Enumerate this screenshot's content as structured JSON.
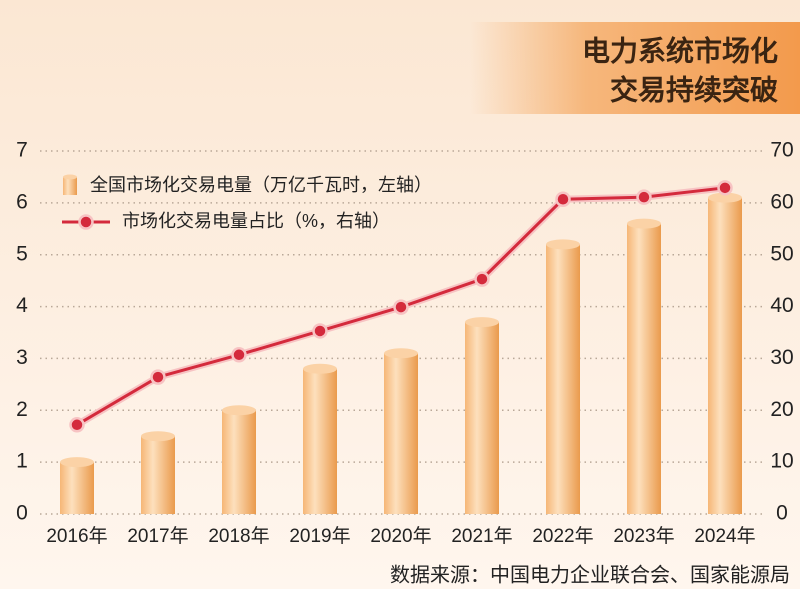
{
  "chart_data": {
    "type": "bar",
    "title": [
      "电力系统市场化",
      "交易持续突破"
    ],
    "categories": [
      "2016年",
      "2017年",
      "2018年",
      "2019年",
      "2020年",
      "2021年",
      "2022年",
      "2023年",
      "2024年"
    ],
    "series": [
      {
        "name": "全国市场化交易电量（万亿千瓦时，左轴）",
        "type": "bar",
        "color": "#f0a050",
        "values": [
          1.0,
          1.5,
          2.0,
          2.8,
          3.1,
          3.7,
          5.2,
          5.6,
          6.1
        ]
      },
      {
        "name": "市场化交易电量占比（%，右轴）",
        "type": "line",
        "axis": "y2",
        "color": "#d42a3c",
        "values": [
          17.2,
          26.4,
          30.7,
          35.3,
          39.9,
          45.3,
          60.7,
          61.1,
          62.9
        ]
      }
    ],
    "ylim": [
      0,
      7
    ],
    "yticks": [
      0,
      1,
      2,
      3,
      4,
      5,
      6,
      7
    ],
    "y2lim": [
      0,
      70
    ],
    "y2ticks": [
      0,
      10,
      20,
      30,
      40,
      50,
      60,
      70
    ],
    "grid": true,
    "source": "数据来源：中国电力企业联合会、国家能源局"
  }
}
